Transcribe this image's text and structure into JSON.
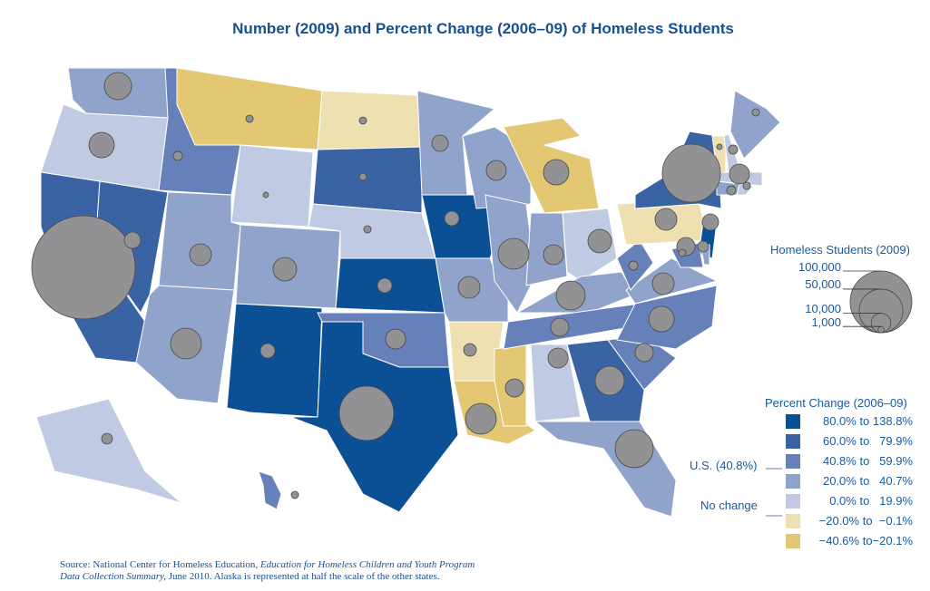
{
  "title": "Number (2009) and Percent Change (2006–09) of Homeless Students",
  "size_legend": {
    "title": "Homeless Students (2009)",
    "levels": [
      {
        "label": "100,000",
        "value": 100000
      },
      {
        "label": "50,000",
        "value": 50000
      },
      {
        "label": "10,000",
        "value": 10000
      },
      {
        "label": "1,000",
        "value": 1000
      }
    ]
  },
  "color_legend": {
    "title": "Percent Change (2006–09)",
    "classes": [
      {
        "label": "80.0% to 138.8%",
        "color": "#0b4f95"
      },
      {
        "label": "60.0% to   79.9%",
        "color": "#3a63a3"
      },
      {
        "label": "40.8% to   59.9%",
        "color": "#6680b9"
      },
      {
        "label": "20.0% to   40.7%",
        "color": "#8fa3cb"
      },
      {
        "label": "0.0% to   19.9%",
        "color": "#c1cae3"
      },
      {
        "label": "−20.0% to  −0.1%",
        "color": "#eee0b1"
      },
      {
        "label": "−40.6% to−20.1%",
        "color": "#e3c773"
      }
    ],
    "us_marker": "U.S. (40.8%)",
    "no_change_marker": "No change"
  },
  "source": {
    "prefix": "Source: National Center for Homeless Education, ",
    "italic1": "Education for Homeless Children and Youth Program",
    "italic2": "Data Collection Summary,",
    "suffix": " June 2010. Alaska is represented at half the scale of the other states."
  },
  "states": [
    {
      "id": "WA",
      "cls": 3,
      "students": 19500
    },
    {
      "id": "OR",
      "cls": 4,
      "students": 17000
    },
    {
      "id": "CA",
      "cls": 1,
      "students": 281000
    },
    {
      "id": "NV",
      "cls": 1,
      "students": 7000
    },
    {
      "id": "ID",
      "cls": 2,
      "students": 2200
    },
    {
      "id": "MT",
      "cls": 6,
      "students": 1400
    },
    {
      "id": "WY",
      "cls": 4,
      "students": 800
    },
    {
      "id": "UT",
      "cls": 3,
      "students": 12500
    },
    {
      "id": "AZ",
      "cls": 3,
      "students": 25000
    },
    {
      "id": "CO",
      "cls": 3,
      "students": 14600
    },
    {
      "id": "NM",
      "cls": 0,
      "students": 5500
    },
    {
      "id": "ND",
      "cls": 5,
      "students": 1400
    },
    {
      "id": "SD",
      "cls": 1,
      "students": 1400
    },
    {
      "id": "NE",
      "cls": 4,
      "students": 1400
    },
    {
      "id": "KS",
      "cls": 0,
      "students": 5500
    },
    {
      "id": "OK",
      "cls": 2,
      "students": 10500
    },
    {
      "id": "TX",
      "cls": 0,
      "students": 77900
    },
    {
      "id": "MN",
      "cls": 3,
      "students": 7000
    },
    {
      "id": "IA",
      "cls": 0,
      "students": 5500
    },
    {
      "id": "MO",
      "cls": 3,
      "students": 12500
    },
    {
      "id": "AR",
      "cls": 5,
      "students": 4200
    },
    {
      "id": "LA",
      "cls": 6,
      "students": 25000
    },
    {
      "id": "MS",
      "cls": 6,
      "students": 8700
    },
    {
      "id": "WI",
      "cls": 3,
      "students": 10500
    },
    {
      "id": "IL",
      "cls": 3,
      "students": 25000
    },
    {
      "id": "MI",
      "cls": 6,
      "students": 17000
    },
    {
      "id": "IN",
      "cls": 3,
      "students": 10500
    },
    {
      "id": "OH",
      "cls": 4,
      "students": 14600
    },
    {
      "id": "KY",
      "cls": 3,
      "students": 22100
    },
    {
      "id": "TN",
      "cls": 2,
      "students": 8700
    },
    {
      "id": "AL",
      "cls": 4,
      "students": 10500
    },
    {
      "id": "GA",
      "cls": 1,
      "students": 22100
    },
    {
      "id": "FL",
      "cls": 3,
      "students": 38100
    },
    {
      "id": "SC",
      "cls": 2,
      "students": 8700
    },
    {
      "id": "NC",
      "cls": 2,
      "students": 17000
    },
    {
      "id": "VA",
      "cls": 3,
      "students": 12500
    },
    {
      "id": "WV",
      "cls": 2,
      "students": 2200
    },
    {
      "id": "PA",
      "cls": 5,
      "students": 12500
    },
    {
      "id": "NY",
      "cls": 1,
      "students": 88600
    },
    {
      "id": "VT",
      "cls": 5,
      "students": 800
    },
    {
      "id": "NH",
      "cls": 4,
      "students": 2200
    },
    {
      "id": "ME",
      "cls": 3,
      "students": 1400
    },
    {
      "id": "MA",
      "cls": 4,
      "students": 10500
    },
    {
      "id": "CT",
      "cls": 3,
      "students": 2200
    },
    {
      "id": "RI",
      "cls": 4,
      "students": 1400
    },
    {
      "id": "NJ",
      "cls": 0,
      "students": 7000
    },
    {
      "id": "MD",
      "cls": 2,
      "students": 8700
    },
    {
      "id": "DE",
      "cls": 3,
      "students": 3100
    },
    {
      "id": "DC",
      "cls": 3,
      "students": 1400
    },
    {
      "id": "AK",
      "cls": 4,
      "students": 3100
    },
    {
      "id": "HI",
      "cls": 2,
      "students": 1400
    }
  ]
}
